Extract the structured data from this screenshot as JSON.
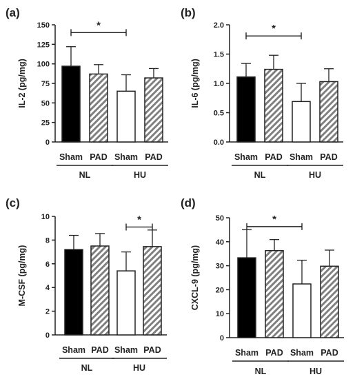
{
  "figure": {
    "panels": [
      "a",
      "b",
      "c",
      "d"
    ]
  },
  "chart_data": [
    {
      "panel": "(a)",
      "type": "bar",
      "ylabel": "IL-2 (pg/mg)",
      "ylim": [
        0,
        150
      ],
      "yticks": [
        "0",
        "25",
        "50",
        "75",
        "100",
        "125",
        "150"
      ],
      "categories": [
        "Sham",
        "PAD",
        "Sham",
        "PAD"
      ],
      "groups": [
        "NL",
        "HU"
      ],
      "values": [
        97,
        87,
        65,
        82
      ],
      "errors": [
        25,
        12,
        21,
        12
      ],
      "fills": [
        "solid",
        "hatch",
        "open",
        "hatch"
      ],
      "significance": [
        {
          "from": 0,
          "to": 2,
          "y": 140,
          "label": "*"
        }
      ]
    },
    {
      "panel": "(b)",
      "type": "bar",
      "ylabel": "IL-6 (pg/mg)",
      "ylim": [
        0,
        2.0
      ],
      "yticks": [
        "0.0",
        "0.5",
        "1.0",
        "1.5",
        "2.0"
      ],
      "categories": [
        "Sham",
        "PAD",
        "Sham",
        "PAD"
      ],
      "groups": [
        "NL",
        "HU"
      ],
      "values": [
        1.11,
        1.24,
        0.69,
        1.03
      ],
      "errors": [
        0.23,
        0.24,
        0.31,
        0.22
      ],
      "fills": [
        "solid",
        "hatch",
        "open",
        "hatch"
      ],
      "significance": [
        {
          "from": 0,
          "to": 2,
          "y": 1.81,
          "label": "*"
        }
      ]
    },
    {
      "panel": "(c)",
      "type": "bar",
      "ylabel": "M-CSF (pg/mg)",
      "ylim": [
        0,
        10
      ],
      "yticks": [
        "0",
        "2",
        "4",
        "6",
        "8",
        "10"
      ],
      "categories": [
        "Sham",
        "PAD",
        "Sham",
        "PAD"
      ],
      "groups": [
        "NL",
        "HU"
      ],
      "values": [
        7.2,
        7.5,
        5.4,
        7.45
      ],
      "errors": [
        1.2,
        1.05,
        1.6,
        1.4
      ],
      "fills": [
        "solid",
        "hatch",
        "open",
        "hatch"
      ],
      "significance": [
        {
          "from": 2,
          "to": 3,
          "y": 9.1,
          "label": "*"
        }
      ]
    },
    {
      "panel": "(d)",
      "type": "bar",
      "ylabel": "CXCL-9 (pg/mg)",
      "ylim": [
        0,
        50
      ],
      "yticks": [
        "0",
        "10",
        "20",
        "30",
        "40",
        "50"
      ],
      "categories": [
        "Sham",
        "PAD",
        "Sham",
        "PAD"
      ],
      "groups": [
        "NL",
        "HU"
      ],
      "values": [
        33.3,
        36.3,
        22.4,
        29.8
      ],
      "errors": [
        11.7,
        4.6,
        9.9,
        6.7
      ],
      "fills": [
        "solid",
        "hatch",
        "open",
        "hatch"
      ],
      "significance": [
        {
          "from": 0,
          "to": 2,
          "y": 46.3,
          "label": "*"
        }
      ]
    }
  ]
}
